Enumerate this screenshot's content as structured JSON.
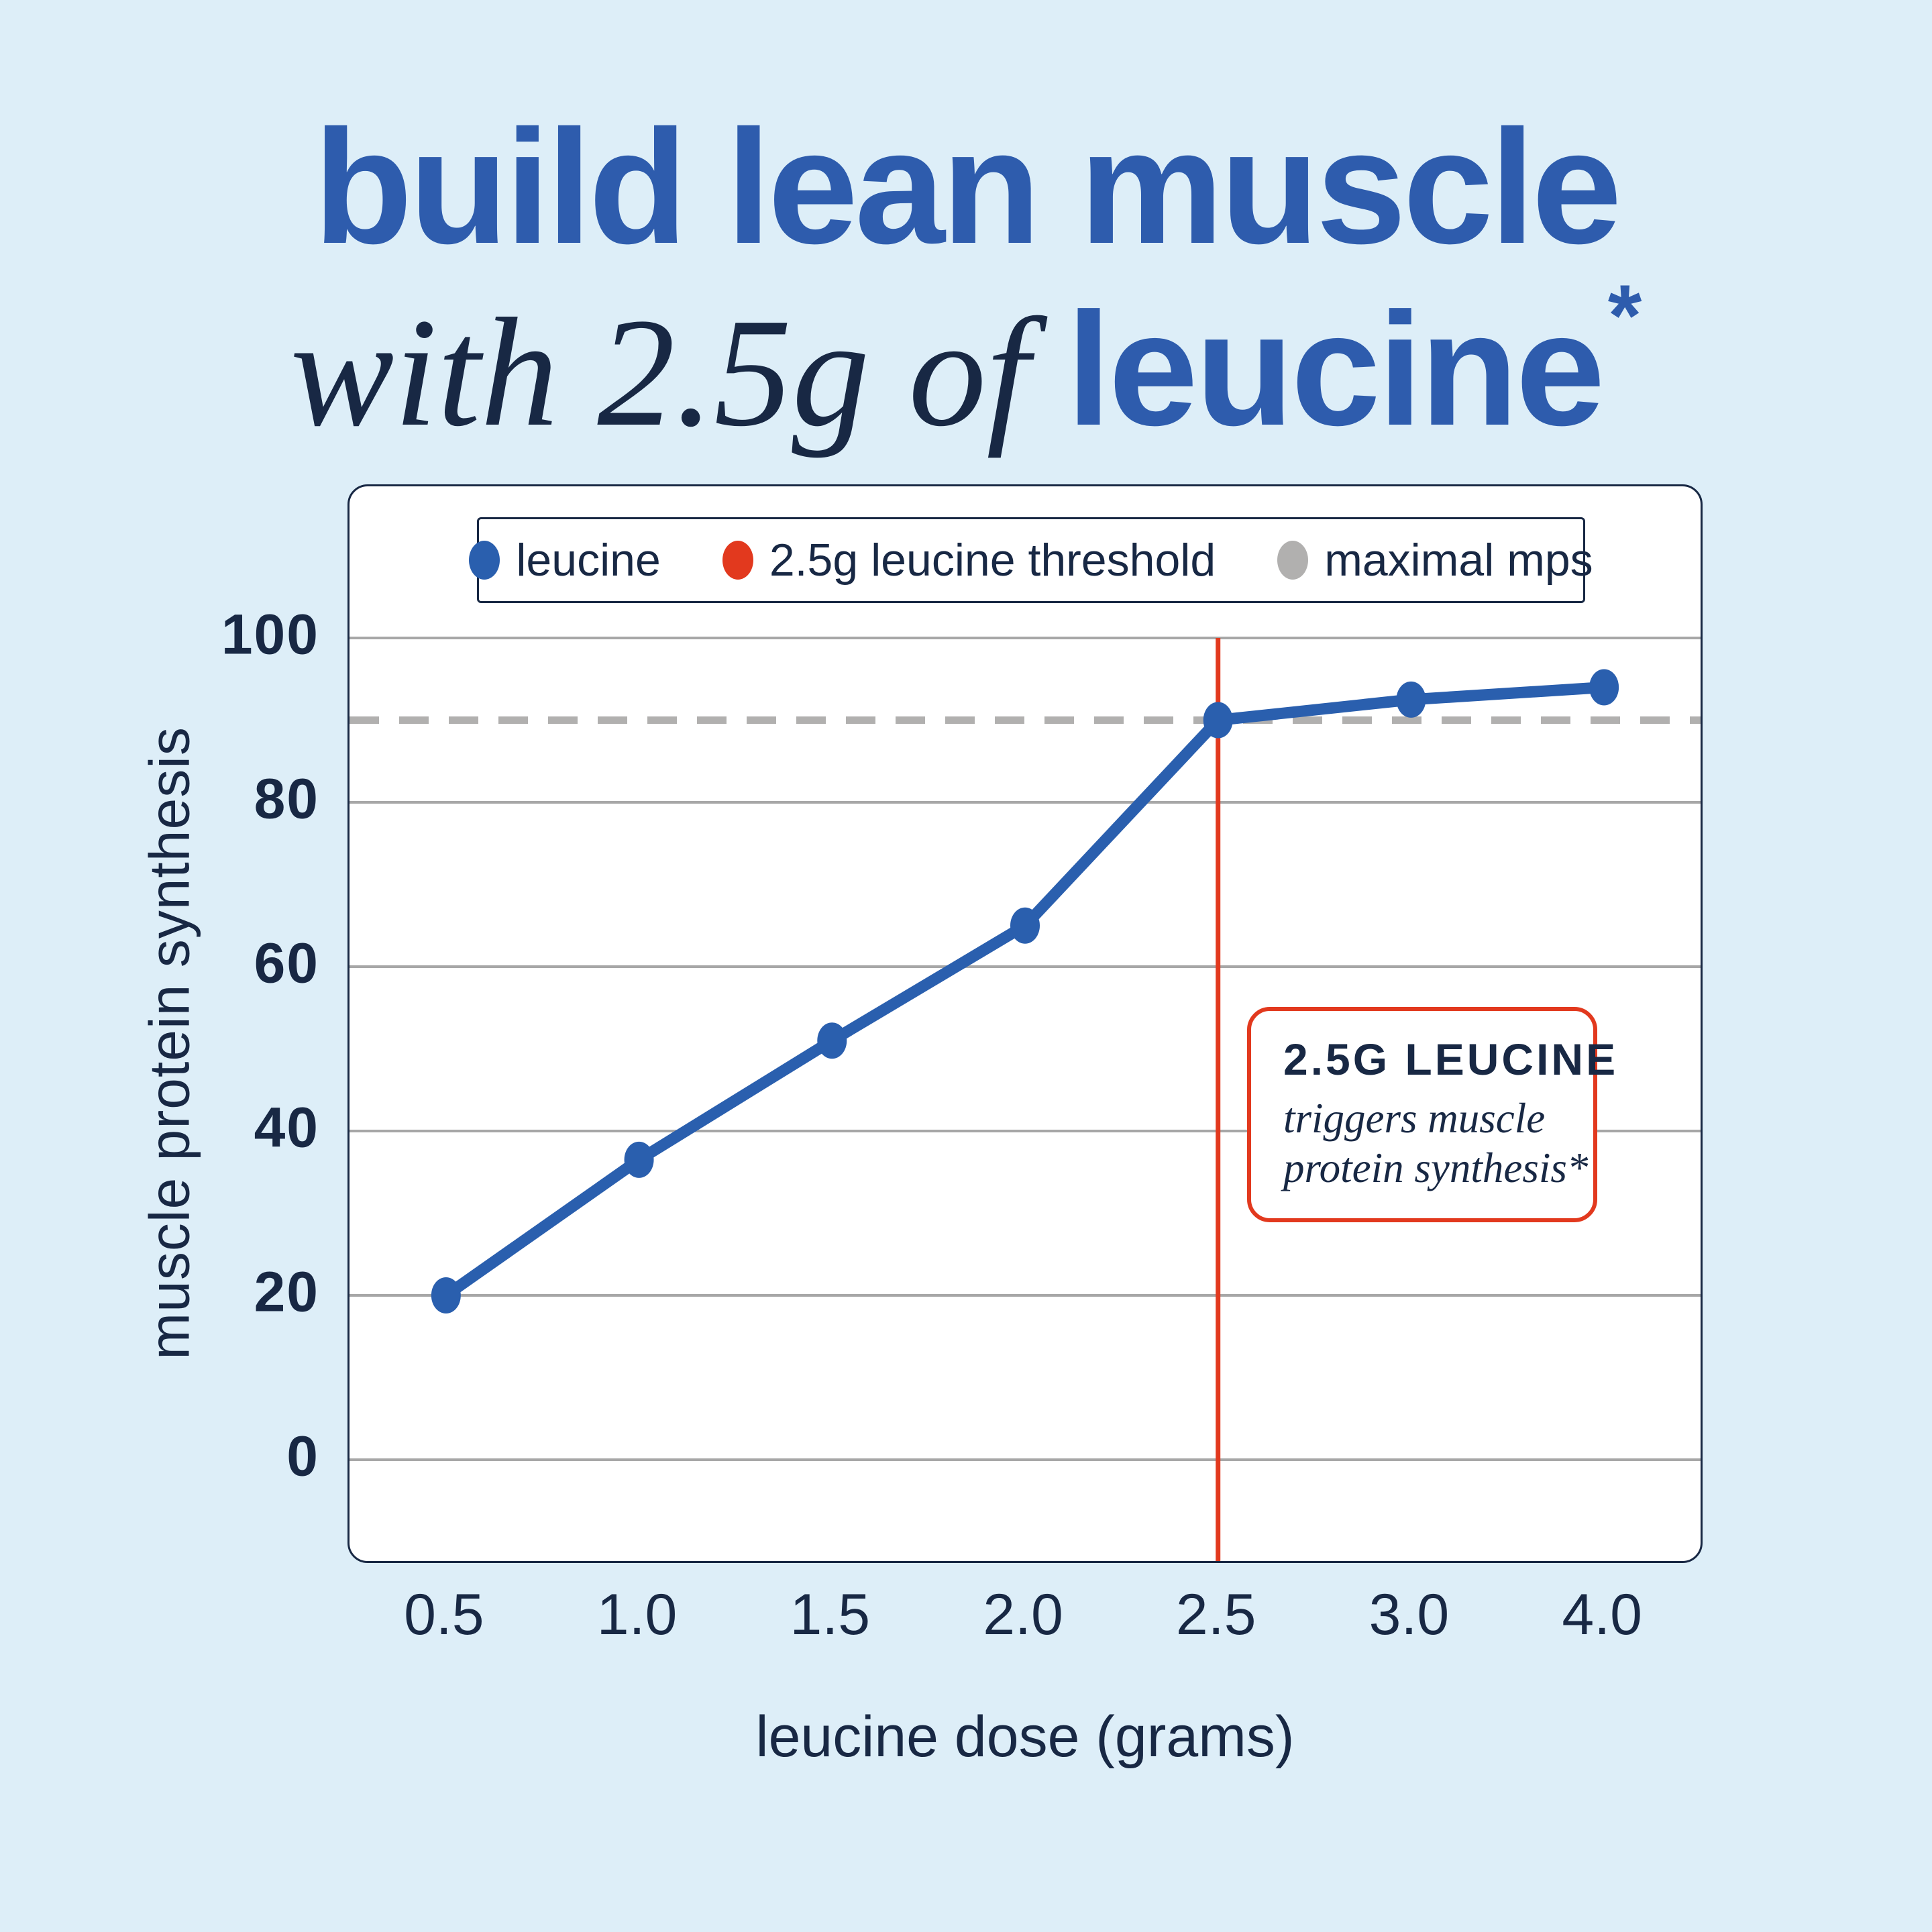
{
  "title": {
    "line1": "build lean muscle",
    "line2_italic": "with 2.5g of",
    "line2_bold": "leucine",
    "line2_superscript": "*"
  },
  "colors": {
    "background": "#ddeef8",
    "card_background": "#ffffff",
    "navy_text": "#182844",
    "title_blue": "#2e5cad",
    "line_blue": "#2a5fae",
    "threshold_red": "#e2391e",
    "maximal_gray": "#b1b0af",
    "gridline_gray": "#a7a7a7"
  },
  "chart": {
    "legend": [
      {
        "label": "leucine",
        "color": "#2a5fae",
        "marker": "dot"
      },
      {
        "label": "2.5g leucine threshold",
        "color": "#e2391e",
        "marker": "dot"
      },
      {
        "label": "maximal mps",
        "color": "#b1b0af",
        "marker": "dot"
      }
    ],
    "annotation": {
      "title": "2.5G LEUCINE",
      "line1": "triggers muscle",
      "line2": "protein synthesis*"
    }
  },
  "chart_data": {
    "type": "line",
    "title": "",
    "xlabel": "leucine dose (grams)",
    "ylabel": "muscle protein synthesis",
    "x": [
      0.5,
      1.0,
      1.5,
      2.0,
      2.5,
      3.0,
      4.0
    ],
    "x_tick_labels": [
      "0.5",
      "1.0",
      "1.5",
      "2.0",
      "2.5",
      "3.0",
      "4.0"
    ],
    "x_spacing": "categorical-even",
    "series": [
      {
        "name": "leucine",
        "color": "#2a5fae",
        "values": [
          20,
          36.5,
          51,
          65,
          90,
          92.5,
          94
        ]
      }
    ],
    "yticks": [
      0,
      20,
      40,
      60,
      80,
      100
    ],
    "ylim": [
      -13,
      118
    ],
    "grid": "horizontal-only",
    "threshold_line_x": 2.5,
    "maximal_mps_y": 90,
    "maximal_mps_style": "dashed",
    "legend_position": "top-inside"
  }
}
